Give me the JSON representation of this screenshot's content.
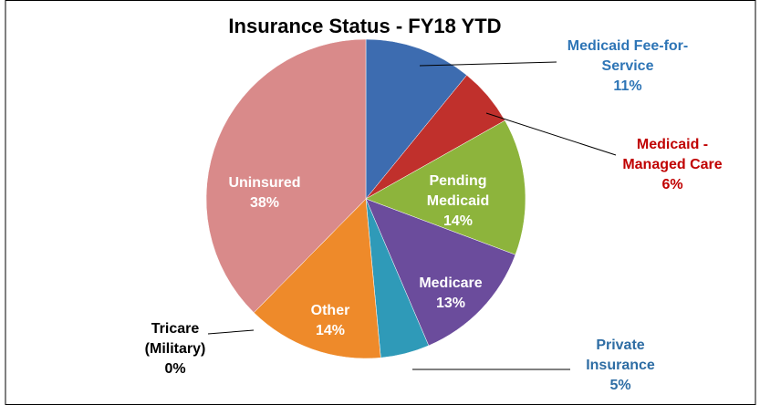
{
  "chart_data": {
    "type": "pie",
    "title": "Insurance Status - FY18 YTD",
    "categories": [
      "Medicaid Fee-for-Service",
      "Medicaid - Managed Care",
      "Pending Medicaid",
      "Medicare",
      "Private Insurance",
      "Other",
      "Tricare (Military)",
      "Uninsured"
    ],
    "values": [
      11,
      6,
      14,
      13,
      5,
      14,
      0,
      38
    ],
    "value_labels": [
      "11%",
      "6%",
      "14%",
      "13%",
      "5%",
      "14%",
      "0%",
      "38%"
    ],
    "colors": [
      "#3d6cb0",
      "#c0302c",
      "#8db43c",
      "#6b4c9c",
      "#2f9ab8",
      "#ee8a2a",
      "#8aa8d0",
      "#d98a8a"
    ]
  }
}
